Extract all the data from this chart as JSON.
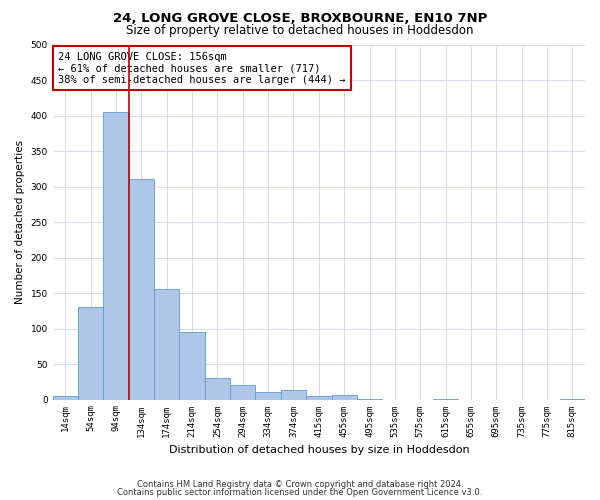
{
  "title": "24, LONG GROVE CLOSE, BROXBOURNE, EN10 7NP",
  "subtitle": "Size of property relative to detached houses in Hoddesdon",
  "xlabel": "Distribution of detached houses by size in Hoddesdon",
  "ylabel": "Number of detached properties",
  "bar_labels": [
    "14sqm",
    "54sqm",
    "94sqm",
    "134sqm",
    "174sqm",
    "214sqm",
    "254sqm",
    "294sqm",
    "334sqm",
    "374sqm",
    "415sqm",
    "455sqm",
    "495sqm",
    "535sqm",
    "575sqm",
    "615sqm",
    "655sqm",
    "695sqm",
    "735sqm",
    "775sqm",
    "815sqm"
  ],
  "bar_values": [
    5,
    130,
    405,
    310,
    155,
    95,
    30,
    20,
    10,
    13,
    5,
    6,
    1,
    0,
    0,
    1,
    0,
    0,
    0,
    0,
    1
  ],
  "bar_color": "#aec6e8",
  "bar_edge_color": "#5b9bd5",
  "vline_x": 2.5,
  "vline_color": "#c00000",
  "annotation_text": "24 LONG GROVE CLOSE: 156sqm\n← 61% of detached houses are smaller (717)\n38% of semi-detached houses are larger (444) →",
  "annotation_box_color": "#ffffff",
  "annotation_box_edge_color": "#c00000",
  "ylim": [
    0,
    500
  ],
  "yticks": [
    0,
    50,
    100,
    150,
    200,
    250,
    300,
    350,
    400,
    450,
    500
  ],
  "background_color": "#ffffff",
  "grid_color": "#d0d8e8",
  "footnote1": "Contains HM Land Registry data © Crown copyright and database right 2024.",
  "footnote2": "Contains public sector information licensed under the Open Government Licence v3.0.",
  "title_fontsize": 9.5,
  "subtitle_fontsize": 8.5,
  "xlabel_fontsize": 8,
  "ylabel_fontsize": 7.5,
  "tick_fontsize": 6.5,
  "annotation_fontsize": 7.5,
  "footnote_fontsize": 6.0
}
